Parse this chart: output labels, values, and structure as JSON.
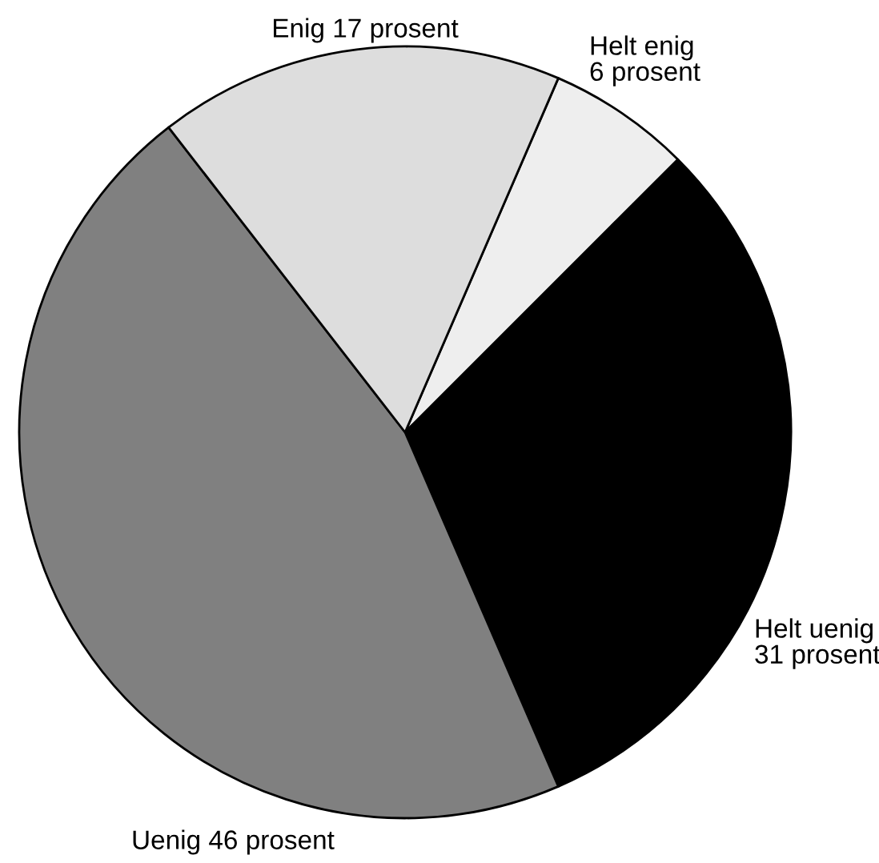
{
  "chart_data": {
    "type": "pie",
    "categories": [
      "Helt enig",
      "Helt uenig",
      "Uenig",
      "Enig"
    ],
    "values": [
      6,
      31,
      46,
      17
    ],
    "value_labels": [
      "6 prosent",
      "31 prosent",
      "46 prosent",
      "17 prosent"
    ],
    "colors": [
      "#eeeeee",
      "#000000",
      "#808080",
      "#dddddd"
    ],
    "legend": false
  }
}
